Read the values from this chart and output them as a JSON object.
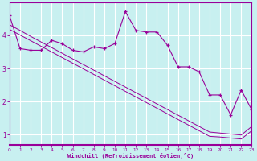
{
  "xlabel": "Windchill (Refroidissement éolien,°C)",
  "background_color": "#c8f0f0",
  "line_color": "#990099",
  "grid_color": "#ffffff",
  "x_data": [
    0,
    1,
    2,
    3,
    4,
    5,
    6,
    7,
    8,
    9,
    10,
    11,
    12,
    13,
    14,
    15,
    16,
    17,
    18,
    19,
    20,
    21,
    22,
    23
  ],
  "y_main": [
    4.6,
    3.6,
    3.55,
    3.55,
    3.85,
    3.75,
    3.55,
    3.5,
    3.65,
    3.6,
    3.75,
    4.72,
    4.15,
    4.1,
    4.1,
    3.7,
    3.05,
    3.05,
    2.9,
    2.2,
    2.2,
    1.6,
    2.35,
    1.75
  ],
  "y_reg1": [
    4.32,
    4.15,
    3.97,
    3.8,
    3.63,
    3.46,
    3.29,
    3.12,
    2.95,
    2.78,
    2.61,
    2.44,
    2.27,
    2.1,
    1.93,
    1.76,
    1.59,
    1.42,
    1.25,
    1.08,
    1.05,
    1.02,
    0.99,
    1.25
  ],
  "y_reg2": [
    4.18,
    4.01,
    3.84,
    3.67,
    3.5,
    3.33,
    3.16,
    2.99,
    2.82,
    2.65,
    2.48,
    2.31,
    2.14,
    1.97,
    1.8,
    1.63,
    1.46,
    1.29,
    1.12,
    0.95,
    0.93,
    0.9,
    0.87,
    1.12
  ],
  "ylim": [
    0.7,
    5.0
  ],
  "xlim": [
    0,
    23
  ],
  "yticks": [
    1,
    2,
    3,
    4
  ],
  "xtick_labels": [
    "0",
    "1",
    "2",
    "3",
    "4",
    "5",
    "6",
    "7",
    "8",
    "9",
    "10",
    "11",
    "12",
    "13",
    "14",
    "15",
    "16",
    "17",
    "18",
    "19",
    "20",
    "21",
    "22",
    "23"
  ]
}
